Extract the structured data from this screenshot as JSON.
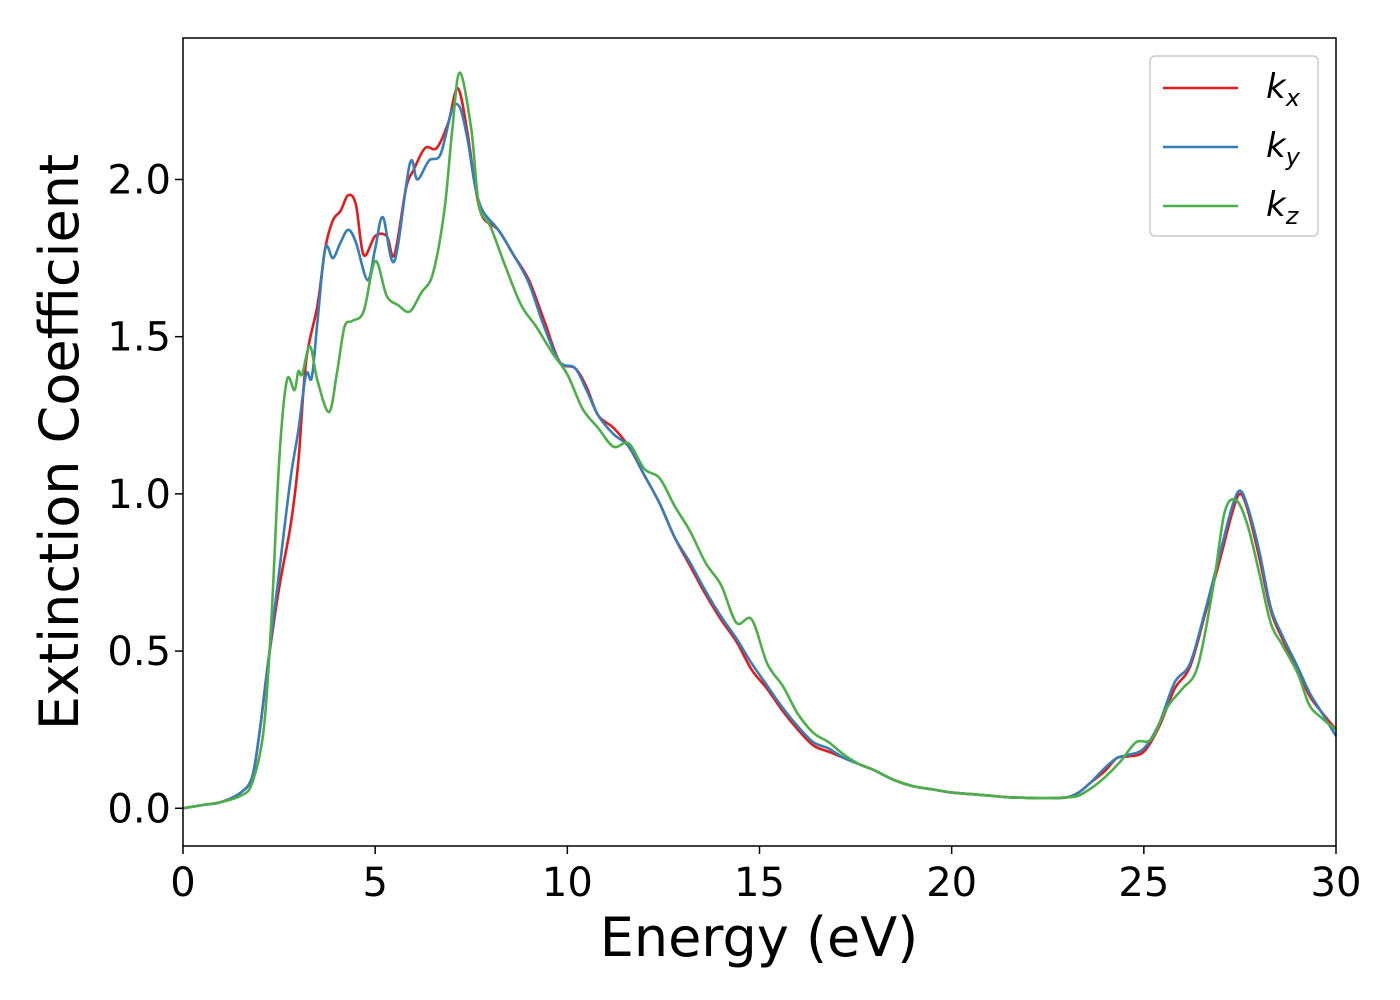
{
  "chart_data": {
    "type": "line",
    "xlabel": "Energy (eV)",
    "ylabel": "Extinction Coefficient",
    "xlim": [
      0,
      30
    ],
    "ylim": [
      -0.12,
      2.45
    ],
    "xticks": [
      0,
      5,
      10,
      15,
      20,
      25,
      30
    ],
    "xtick_labels": [
      "0",
      "5",
      "10",
      "15",
      "20",
      "25",
      "30"
    ],
    "yticks": [
      0.0,
      0.5,
      1.0,
      1.5,
      2.0
    ],
    "ytick_labels": [
      "0.0",
      "0.5",
      "1.0",
      "1.5",
      "2.0"
    ],
    "grid": false,
    "legend": "top-right",
    "series": [
      {
        "name": "k",
        "sub": "x",
        "color": "#e41a1c",
        "points": [
          [
            0,
            0
          ],
          [
            0.5,
            0.01
          ],
          [
            1.0,
            0.02
          ],
          [
            1.5,
            0.05
          ],
          [
            1.8,
            0.1
          ],
          [
            2.0,
            0.25
          ],
          [
            2.2,
            0.45
          ],
          [
            2.5,
            0.7
          ],
          [
            2.8,
            0.9
          ],
          [
            3.0,
            1.1
          ],
          [
            3.2,
            1.42
          ],
          [
            3.5,
            1.6
          ],
          [
            3.7,
            1.78
          ],
          [
            3.9,
            1.87
          ],
          [
            4.1,
            1.9
          ],
          [
            4.3,
            1.95
          ],
          [
            4.5,
            1.92
          ],
          [
            4.7,
            1.76
          ],
          [
            5.0,
            1.82
          ],
          [
            5.3,
            1.82
          ],
          [
            5.5,
            1.76
          ],
          [
            5.8,
            1.97
          ],
          [
            6.0,
            2.03
          ],
          [
            6.3,
            2.1
          ],
          [
            6.6,
            2.1
          ],
          [
            6.9,
            2.18
          ],
          [
            7.15,
            2.29
          ],
          [
            7.4,
            2.15
          ],
          [
            7.6,
            1.98
          ],
          [
            7.8,
            1.88
          ],
          [
            8.2,
            1.84
          ],
          [
            8.6,
            1.76
          ],
          [
            9.0,
            1.68
          ],
          [
            9.4,
            1.55
          ],
          [
            9.8,
            1.42
          ],
          [
            10.2,
            1.4
          ],
          [
            10.5,
            1.34
          ],
          [
            10.8,
            1.25
          ],
          [
            11.2,
            1.21
          ],
          [
            11.6,
            1.15
          ],
          [
            12.0,
            1.06
          ],
          [
            12.4,
            0.97
          ],
          [
            12.8,
            0.86
          ],
          [
            13.2,
            0.77
          ],
          [
            13.6,
            0.68
          ],
          [
            14.0,
            0.6
          ],
          [
            14.4,
            0.53
          ],
          [
            14.8,
            0.44
          ],
          [
            15.2,
            0.38
          ],
          [
            15.6,
            0.31
          ],
          [
            16.0,
            0.25
          ],
          [
            16.4,
            0.2
          ],
          [
            16.8,
            0.18
          ],
          [
            17.2,
            0.16
          ],
          [
            17.6,
            0.14
          ],
          [
            18.0,
            0.12
          ],
          [
            18.5,
            0.09
          ],
          [
            19.0,
            0.07
          ],
          [
            19.5,
            0.06
          ],
          [
            20.0,
            0.05
          ],
          [
            20.5,
            0.045
          ],
          [
            21.0,
            0.04
          ],
          [
            21.5,
            0.035
          ],
          [
            22.0,
            0.033
          ],
          [
            22.5,
            0.032
          ],
          [
            23.0,
            0.035
          ],
          [
            23.3,
            0.05
          ],
          [
            23.6,
            0.08
          ],
          [
            24.0,
            0.12
          ],
          [
            24.3,
            0.16
          ],
          [
            24.6,
            0.165
          ],
          [
            25.0,
            0.18
          ],
          [
            25.4,
            0.26
          ],
          [
            25.8,
            0.38
          ],
          [
            26.2,
            0.45
          ],
          [
            26.6,
            0.62
          ],
          [
            27.0,
            0.8
          ],
          [
            27.3,
            0.94
          ],
          [
            27.5,
            1.0
          ],
          [
            27.7,
            0.95
          ],
          [
            28.0,
            0.8
          ],
          [
            28.3,
            0.63
          ],
          [
            28.6,
            0.54
          ],
          [
            29.0,
            0.44
          ],
          [
            29.3,
            0.36
          ],
          [
            29.6,
            0.31
          ],
          [
            30.0,
            0.25
          ]
        ]
      },
      {
        "name": "k",
        "sub": "y",
        "color": "#377eb8",
        "points": [
          [
            0,
            0
          ],
          [
            0.5,
            0.01
          ],
          [
            1.0,
            0.02
          ],
          [
            1.5,
            0.05
          ],
          [
            1.8,
            0.1
          ],
          [
            2.0,
            0.25
          ],
          [
            2.2,
            0.45
          ],
          [
            2.5,
            0.75
          ],
          [
            2.8,
            1.05
          ],
          [
            3.0,
            1.2
          ],
          [
            3.2,
            1.38
          ],
          [
            3.35,
            1.37
          ],
          [
            3.5,
            1.55
          ],
          [
            3.7,
            1.78
          ],
          [
            3.9,
            1.75
          ],
          [
            4.1,
            1.8
          ],
          [
            4.3,
            1.84
          ],
          [
            4.5,
            1.8
          ],
          [
            4.8,
            1.68
          ],
          [
            5.0,
            1.78
          ],
          [
            5.2,
            1.88
          ],
          [
            5.5,
            1.74
          ],
          [
            5.9,
            2.05
          ],
          [
            6.1,
            2.0
          ],
          [
            6.4,
            2.06
          ],
          [
            6.7,
            2.08
          ],
          [
            7.0,
            2.22
          ],
          [
            7.2,
            2.23
          ],
          [
            7.4,
            2.13
          ],
          [
            7.6,
            1.98
          ],
          [
            7.8,
            1.9
          ],
          [
            8.2,
            1.84
          ],
          [
            8.6,
            1.76
          ],
          [
            9.0,
            1.67
          ],
          [
            9.4,
            1.53
          ],
          [
            9.8,
            1.42
          ],
          [
            10.2,
            1.4
          ],
          [
            10.5,
            1.33
          ],
          [
            10.8,
            1.25
          ],
          [
            11.2,
            1.19
          ],
          [
            11.6,
            1.15
          ],
          [
            12.0,
            1.06
          ],
          [
            12.4,
            0.97
          ],
          [
            12.8,
            0.86
          ],
          [
            13.2,
            0.78
          ],
          [
            13.6,
            0.69
          ],
          [
            14.0,
            0.61
          ],
          [
            14.4,
            0.54
          ],
          [
            14.8,
            0.46
          ],
          [
            15.2,
            0.39
          ],
          [
            15.6,
            0.32
          ],
          [
            16.0,
            0.26
          ],
          [
            16.4,
            0.21
          ],
          [
            16.8,
            0.19
          ],
          [
            17.2,
            0.16
          ],
          [
            17.6,
            0.14
          ],
          [
            18.0,
            0.12
          ],
          [
            18.5,
            0.09
          ],
          [
            19.0,
            0.07
          ],
          [
            19.5,
            0.06
          ],
          [
            20.0,
            0.05
          ],
          [
            20.5,
            0.045
          ],
          [
            21.0,
            0.04
          ],
          [
            21.5,
            0.035
          ],
          [
            22.0,
            0.033
          ],
          [
            22.5,
            0.032
          ],
          [
            23.0,
            0.035
          ],
          [
            23.3,
            0.05
          ],
          [
            23.6,
            0.08
          ],
          [
            24.0,
            0.13
          ],
          [
            24.3,
            0.16
          ],
          [
            24.6,
            0.17
          ],
          [
            25.0,
            0.19
          ],
          [
            25.4,
            0.27
          ],
          [
            25.8,
            0.4
          ],
          [
            26.2,
            0.46
          ],
          [
            26.6,
            0.63
          ],
          [
            27.0,
            0.82
          ],
          [
            27.3,
            0.96
          ],
          [
            27.5,
            1.01
          ],
          [
            27.7,
            0.96
          ],
          [
            28.0,
            0.82
          ],
          [
            28.3,
            0.64
          ],
          [
            28.6,
            0.55
          ],
          [
            29.0,
            0.45
          ],
          [
            29.3,
            0.37
          ],
          [
            29.6,
            0.31
          ],
          [
            30.0,
            0.23
          ]
        ]
      },
      {
        "name": "k",
        "sub": "z",
        "color": "#4daf4a",
        "points": [
          [
            0,
            0
          ],
          [
            0.5,
            0.01
          ],
          [
            1.0,
            0.02
          ],
          [
            1.5,
            0.04
          ],
          [
            1.8,
            0.08
          ],
          [
            2.1,
            0.25
          ],
          [
            2.3,
            0.6
          ],
          [
            2.5,
            1.1
          ],
          [
            2.7,
            1.36
          ],
          [
            2.9,
            1.33
          ],
          [
            3.0,
            1.39
          ],
          [
            3.1,
            1.38
          ],
          [
            3.3,
            1.47
          ],
          [
            3.5,
            1.36
          ],
          [
            3.8,
            1.26
          ],
          [
            4.0,
            1.38
          ],
          [
            4.2,
            1.53
          ],
          [
            4.4,
            1.55
          ],
          [
            4.7,
            1.58
          ],
          [
            5.0,
            1.74
          ],
          [
            5.3,
            1.63
          ],
          [
            5.6,
            1.6
          ],
          [
            5.9,
            1.58
          ],
          [
            6.2,
            1.64
          ],
          [
            6.5,
            1.7
          ],
          [
            6.8,
            1.9
          ],
          [
            7.0,
            2.15
          ],
          [
            7.2,
            2.34
          ],
          [
            7.5,
            2.16
          ],
          [
            7.7,
            1.92
          ],
          [
            8.0,
            1.85
          ],
          [
            8.4,
            1.72
          ],
          [
            8.8,
            1.6
          ],
          [
            9.2,
            1.53
          ],
          [
            9.6,
            1.45
          ],
          [
            10.0,
            1.38
          ],
          [
            10.4,
            1.27
          ],
          [
            10.8,
            1.21
          ],
          [
            11.2,
            1.15
          ],
          [
            11.6,
            1.16
          ],
          [
            12.0,
            1.08
          ],
          [
            12.4,
            1.05
          ],
          [
            12.8,
            0.96
          ],
          [
            13.2,
            0.88
          ],
          [
            13.6,
            0.78
          ],
          [
            14.0,
            0.71
          ],
          [
            14.4,
            0.59
          ],
          [
            14.8,
            0.6
          ],
          [
            15.2,
            0.46
          ],
          [
            15.6,
            0.39
          ],
          [
            16.0,
            0.3
          ],
          [
            16.4,
            0.24
          ],
          [
            16.8,
            0.21
          ],
          [
            17.2,
            0.17
          ],
          [
            17.6,
            0.14
          ],
          [
            18.0,
            0.12
          ],
          [
            18.5,
            0.09
          ],
          [
            19.0,
            0.07
          ],
          [
            19.5,
            0.06
          ],
          [
            20.0,
            0.05
          ],
          [
            20.5,
            0.045
          ],
          [
            21.0,
            0.04
          ],
          [
            21.5,
            0.035
          ],
          [
            22.0,
            0.033
          ],
          [
            22.5,
            0.032
          ],
          [
            23.0,
            0.035
          ],
          [
            23.3,
            0.04
          ],
          [
            23.7,
            0.07
          ],
          [
            24.0,
            0.1
          ],
          [
            24.4,
            0.15
          ],
          [
            24.8,
            0.21
          ],
          [
            25.2,
            0.22
          ],
          [
            25.6,
            0.32
          ],
          [
            26.0,
            0.38
          ],
          [
            26.4,
            0.45
          ],
          [
            26.8,
            0.7
          ],
          [
            27.1,
            0.94
          ],
          [
            27.4,
            0.98
          ],
          [
            27.7,
            0.9
          ],
          [
            28.0,
            0.75
          ],
          [
            28.3,
            0.59
          ],
          [
            28.6,
            0.52
          ],
          [
            29.0,
            0.43
          ],
          [
            29.3,
            0.33
          ],
          [
            29.6,
            0.29
          ],
          [
            30.0,
            0.25
          ]
        ]
      }
    ]
  }
}
